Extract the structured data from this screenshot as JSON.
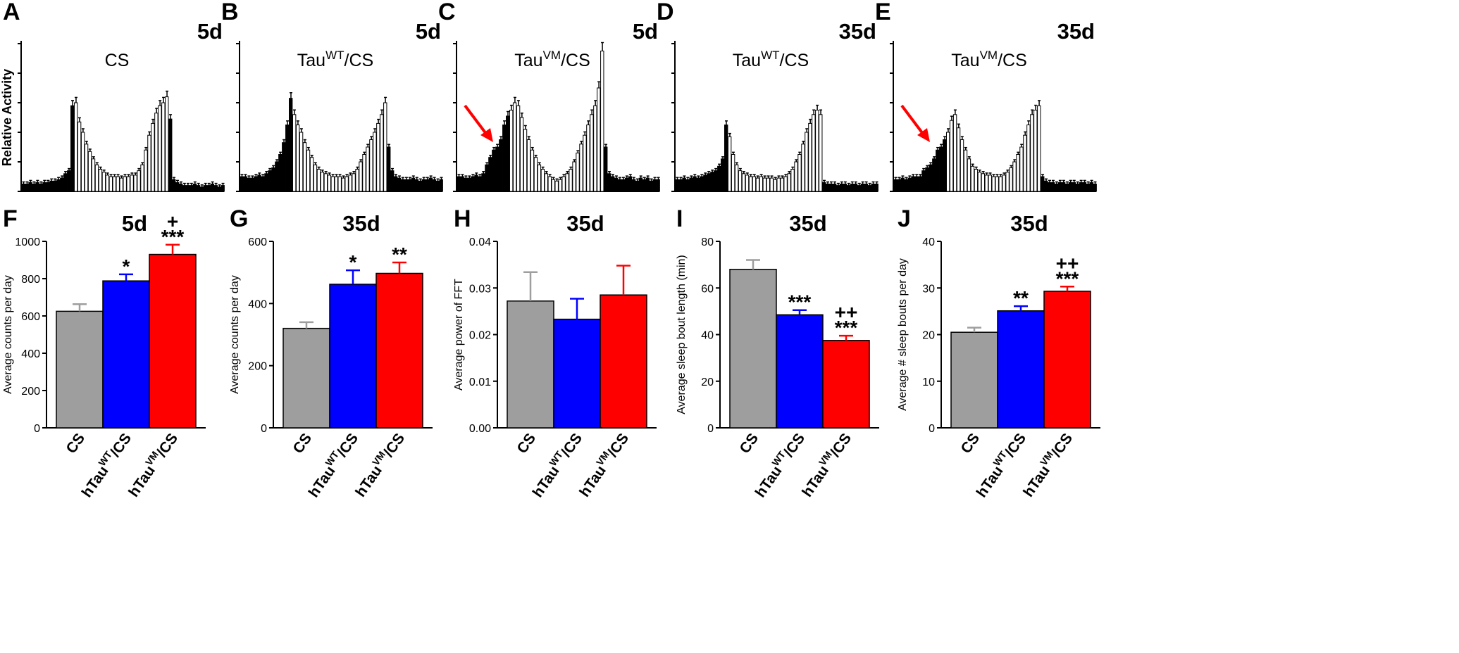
{
  "colors": {
    "axis": "#000000",
    "cs": "#9e9e9e",
    "wt": "#0000ff",
    "vm": "#ff0000",
    "dark_bar": "#000000",
    "light_bar": "#ffffff",
    "arrow": "#ff0000"
  },
  "activity_panels": [
    {
      "letter": "A",
      "age": "5d",
      "title": "CS",
      "sup": "",
      "title_suffix": "",
      "ylabel": "Relative Activity",
      "arrow": false,
      "values": [
        5,
        5,
        6,
        5,
        6,
        5,
        6,
        6,
        7,
        7,
        8,
        9,
        12,
        14,
        58,
        60,
        47,
        40,
        32,
        27,
        22,
        18,
        15,
        13,
        11,
        10,
        10,
        10,
        9,
        10,
        10,
        11,
        11,
        14,
        18,
        28,
        38,
        46,
        53,
        58,
        60,
        64,
        49,
        8,
        6,
        5,
        4,
        4,
        4,
        5,
        4,
        3,
        4,
        4,
        5,
        4,
        3,
        4
      ]
    },
    {
      "letter": "B",
      "age": "5d",
      "title": "Tau",
      "sup": "WT",
      "title_suffix": "/CS",
      "ylabel": "",
      "arrow": false,
      "values": [
        10,
        10,
        9,
        9,
        10,
        11,
        10,
        12,
        14,
        16,
        20,
        25,
        33,
        45,
        63,
        52,
        45,
        40,
        33,
        28,
        23,
        18,
        15,
        13,
        12,
        11,
        10,
        10,
        10,
        9,
        10,
        11,
        12,
        15,
        20,
        25,
        30,
        35,
        40,
        46,
        52,
        60,
        30,
        14,
        10,
        9,
        8,
        8,
        8,
        9,
        8,
        7,
        8,
        8,
        9,
        8,
        7,
        8
      ]
    },
    {
      "letter": "C",
      "age": "5d",
      "title": "Tau",
      "sup": "VM",
      "title_suffix": "/CS",
      "ylabel": "",
      "arrow": true,
      "values": [
        10,
        10,
        9,
        9,
        10,
        11,
        10,
        12,
        18,
        23,
        28,
        30,
        35,
        45,
        51,
        55,
        60,
        58,
        50,
        42,
        35,
        28,
        23,
        18,
        15,
        12,
        10,
        8,
        7,
        8,
        10,
        12,
        15,
        20,
        26,
        32,
        38,
        45,
        52,
        58,
        70,
        95,
        30,
        12,
        10,
        9,
        8,
        8,
        9,
        10,
        8,
        7,
        9,
        8,
        9,
        7,
        8,
        8
      ]
    },
    {
      "letter": "D",
      "age": "35d",
      "title": "Tau",
      "sup": "WT",
      "title_suffix": "/CS",
      "ylabel": "",
      "arrow": false,
      "values": [
        8,
        8,
        9,
        8,
        9,
        10,
        9,
        10,
        11,
        12,
        13,
        14,
        17,
        22,
        45,
        37,
        25,
        18,
        14,
        12,
        11,
        10,
        10,
        9,
        10,
        9,
        9,
        9,
        8,
        9,
        9,
        10,
        12,
        15,
        20,
        25,
        32,
        40,
        46,
        52,
        55,
        52,
        6,
        5,
        5,
        5,
        4,
        5,
        5,
        4,
        5,
        5,
        4,
        5,
        5,
        4,
        5,
        5
      ]
    },
    {
      "letter": "E",
      "age": "35d",
      "title": "Tau",
      "sup": "VM",
      "title_suffix": "/CS",
      "ylabel": "",
      "arrow": true,
      "values": [
        8,
        8,
        9,
        8,
        9,
        10,
        10,
        10,
        14,
        16,
        18,
        22,
        28,
        30,
        35,
        40,
        48,
        52,
        43,
        35,
        28,
        22,
        17,
        15,
        13,
        12,
        11,
        11,
        10,
        10,
        10,
        11,
        13,
        16,
        20,
        25,
        30,
        38,
        45,
        52,
        55,
        58,
        10,
        7,
        6,
        6,
        5,
        6,
        6,
        5,
        6,
        6,
        5,
        6,
        6,
        5,
        6,
        5
      ]
    }
  ],
  "chart_data": [
    {
      "panel": "F",
      "type": "bar",
      "age": "5d",
      "ylabel": "Average counts per day",
      "ylim": [
        0,
        1000
      ],
      "yticks": [
        "0",
        "200",
        "400",
        "600",
        "800",
        "1000"
      ],
      "categories": [
        "CS",
        "hTau WT/CS",
        "hTau VM/CS"
      ],
      "values": [
        625,
        788,
        930
      ],
      "errors": [
        38,
        35,
        52
      ],
      "significance": [
        "",
        "*",
        "***"
      ],
      "secondary_significance": [
        "",
        "",
        "+"
      ]
    },
    {
      "panel": "G",
      "type": "bar",
      "age": "35d",
      "ylabel": "Average counts per day",
      "ylim": [
        0,
        600
      ],
      "yticks": [
        "0",
        "200",
        "400",
        "600"
      ],
      "categories": [
        "CS",
        "hTau WT/CS",
        "hTau VM/CS"
      ],
      "values": [
        320,
        462,
        497
      ],
      "errors": [
        20,
        45,
        35
      ],
      "significance": [
        "",
        "*",
        "**"
      ],
      "secondary_significance": [
        "",
        "",
        ""
      ]
    },
    {
      "panel": "H",
      "type": "bar",
      "age": "35d",
      "ylabel": "Average power of FFT",
      "ylim": [
        0,
        0.04
      ],
      "yticks": [
        "0.00",
        "0.01",
        "0.02",
        "0.03",
        "0.04"
      ],
      "categories": [
        "CS",
        "hTau WT/CS",
        "hTau VM/CS"
      ],
      "values": [
        0.0272,
        0.0233,
        0.0285
      ],
      "errors": [
        0.0062,
        0.0044,
        0.0063
      ],
      "significance": [
        "",
        "",
        ""
      ],
      "secondary_significance": [
        "",
        "",
        ""
      ]
    },
    {
      "panel": "I",
      "type": "bar",
      "age": "35d",
      "ylabel": "Average sleep bout length (min)",
      "ylim": [
        0,
        80
      ],
      "yticks": [
        "0",
        "20",
        "40",
        "60",
        "80"
      ],
      "categories": [
        "CS",
        "hTau WT/CS",
        "hTau VM/CS"
      ],
      "values": [
        68,
        48.5,
        37.5
      ],
      "errors": [
        4,
        2,
        2
      ],
      "significance": [
        "",
        "***",
        "***"
      ],
      "secondary_significance": [
        "",
        "",
        "++"
      ]
    },
    {
      "panel": "J",
      "type": "bar",
      "age": "35d",
      "ylabel": "Average # sleep bouts per day",
      "ylim": [
        0,
        40
      ],
      "yticks": [
        "0",
        "10",
        "20",
        "30",
        "40"
      ],
      "categories": [
        "CS",
        "hTau WT/CS",
        "hTau VM/CS"
      ],
      "values": [
        20.5,
        25.1,
        29.3
      ],
      "errors": [
        1.0,
        1.0,
        1.0
      ],
      "significance": [
        "",
        "**",
        "***"
      ],
      "secondary_significance": [
        "",
        "",
        "++"
      ]
    }
  ],
  "category_label_parts": [
    {
      "main": "CS",
      "sup": "",
      "suffix": ""
    },
    {
      "main": "hTau",
      "sup": "WT",
      "suffix": "/CS"
    },
    {
      "main": "hTau",
      "sup": "VM",
      "suffix": "/CS"
    }
  ]
}
